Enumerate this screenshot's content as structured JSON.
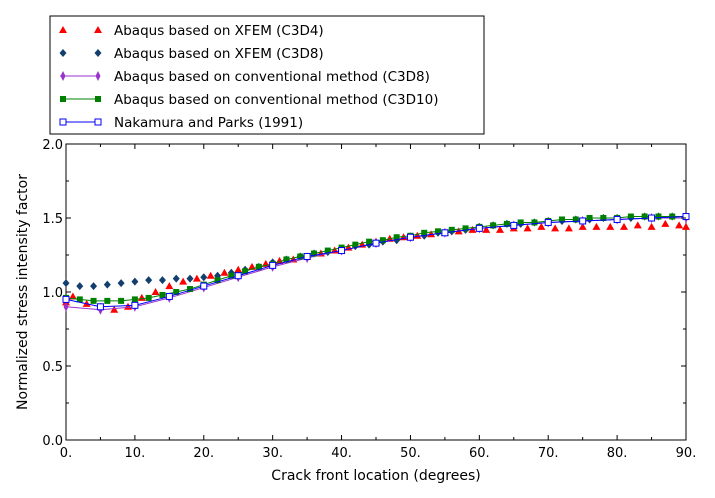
{
  "chart_data": {
    "type": "scatter",
    "xlabel": "Crack front location (degrees)",
    "ylabel": "Normalized stress intensity factor",
    "xlim": [
      0,
      90
    ],
    "ylim": [
      0,
      2
    ],
    "x_ticks": [
      0,
      10,
      20,
      30,
      40,
      50,
      60,
      70,
      80,
      90
    ],
    "x_tick_labels": [
      "0.",
      "10.",
      "20.",
      "30.",
      "40.",
      "50.",
      "60.",
      "70.",
      "80.",
      "90."
    ],
    "y_ticks": [
      0,
      0.5,
      1,
      1.5,
      2
    ],
    "y_tick_labels": [
      "0.0",
      "0.5",
      "1.0",
      "1.5",
      "2.0"
    ],
    "grid": false,
    "legend_position": "top-left, above plot",
    "series": [
      {
        "name": "Abaqus based on XFEM (C3D4)",
        "color": "#ff0000",
        "marker": "triangle",
        "line": false,
        "x": [
          0,
          1,
          3,
          5,
          7,
          9,
          11,
          13,
          15,
          17,
          19,
          21,
          23,
          25,
          27,
          29,
          31,
          33,
          35,
          37,
          39,
          41,
          43,
          45,
          47,
          49,
          51,
          53,
          55,
          57,
          59,
          61,
          63,
          65,
          67,
          69,
          71,
          73,
          75,
          77,
          79,
          81,
          83,
          85,
          87,
          89,
          90
        ],
        "y": [
          0.93,
          0.97,
          0.92,
          0.9,
          0.88,
          0.9,
          0.96,
          1.0,
          1.04,
          1.07,
          1.09,
          1.11,
          1.13,
          1.15,
          1.17,
          1.19,
          1.21,
          1.22,
          1.24,
          1.26,
          1.28,
          1.3,
          1.32,
          1.34,
          1.36,
          1.37,
          1.38,
          1.39,
          1.4,
          1.41,
          1.42,
          1.42,
          1.42,
          1.43,
          1.43,
          1.44,
          1.43,
          1.43,
          1.44,
          1.44,
          1.44,
          1.44,
          1.45,
          1.44,
          1.46,
          1.45,
          1.44
        ]
      },
      {
        "name": "Abaqus based on XFEM (C3D8)",
        "color": "#123f6e",
        "marker": "diamond",
        "line": false,
        "x": [
          0,
          2,
          4,
          6,
          8,
          10,
          12,
          14,
          16,
          18,
          20,
          22,
          24,
          26,
          28,
          30,
          32,
          34,
          36,
          38,
          40,
          42,
          44,
          46,
          48,
          50,
          52,
          54,
          56,
          58,
          60,
          62,
          64,
          66,
          68,
          70,
          72,
          74,
          76,
          78,
          80,
          82,
          84,
          86,
          88,
          90
        ],
        "y": [
          1.06,
          1.04,
          1.04,
          1.05,
          1.06,
          1.07,
          1.08,
          1.08,
          1.09,
          1.09,
          1.1,
          1.11,
          1.13,
          1.15,
          1.17,
          1.2,
          1.22,
          1.24,
          1.26,
          1.27,
          1.29,
          1.31,
          1.32,
          1.34,
          1.35,
          1.37,
          1.38,
          1.4,
          1.41,
          1.42,
          1.44,
          1.45,
          1.46,
          1.46,
          1.47,
          1.48,
          1.48,
          1.49,
          1.49,
          1.5,
          1.5,
          1.5,
          1.51,
          1.51,
          1.51,
          1.51
        ]
      },
      {
        "name": "Abaqus based on conventional method (C3D8)",
        "color": "#9933cc",
        "marker": "thin-diamond",
        "line": true,
        "x": [
          0,
          5,
          10,
          15,
          20,
          25,
          30,
          35,
          40,
          45,
          50,
          55,
          60,
          65,
          70,
          75,
          80,
          85,
          90
        ],
        "y": [
          0.9,
          0.88,
          0.9,
          0.96,
          1.03,
          1.1,
          1.17,
          1.23,
          1.28,
          1.33,
          1.37,
          1.4,
          1.43,
          1.45,
          1.47,
          1.48,
          1.49,
          1.5,
          1.5
        ]
      },
      {
        "name": "Abaqus based on conventional method (C3D10)",
        "color": "#008000",
        "marker": "square",
        "line": true,
        "x": [
          0,
          2,
          4,
          6,
          8,
          10,
          12,
          14,
          16,
          18,
          20,
          22,
          24,
          26,
          28,
          30,
          32,
          34,
          36,
          38,
          40,
          42,
          44,
          46,
          48,
          50,
          52,
          54,
          56,
          58,
          60,
          62,
          64,
          66,
          68,
          70,
          72,
          74,
          76,
          78,
          80,
          82,
          84,
          86,
          88,
          90
        ],
        "y": [
          0.96,
          0.95,
          0.94,
          0.94,
          0.94,
          0.95,
          0.96,
          0.98,
          1.0,
          1.02,
          1.05,
          1.08,
          1.11,
          1.14,
          1.17,
          1.19,
          1.22,
          1.24,
          1.26,
          1.28,
          1.3,
          1.32,
          1.34,
          1.35,
          1.37,
          1.38,
          1.4,
          1.41,
          1.42,
          1.43,
          1.44,
          1.45,
          1.46,
          1.47,
          1.47,
          1.48,
          1.49,
          1.49,
          1.5,
          1.5,
          1.5,
          1.51,
          1.51,
          1.51,
          1.51,
          1.51
        ]
      },
      {
        "name": "Nakamura and Parks (1991)",
        "color": "#0000ff",
        "marker": "open-square",
        "line": true,
        "x": [
          0,
          5,
          10,
          15,
          20,
          25,
          30,
          35,
          40,
          45,
          50,
          55,
          60,
          65,
          70,
          75,
          80,
          85,
          90
        ],
        "y": [
          0.95,
          0.9,
          0.91,
          0.97,
          1.04,
          1.11,
          1.18,
          1.24,
          1.28,
          1.33,
          1.37,
          1.4,
          1.43,
          1.45,
          1.47,
          1.48,
          1.49,
          1.5,
          1.51
        ]
      }
    ]
  }
}
